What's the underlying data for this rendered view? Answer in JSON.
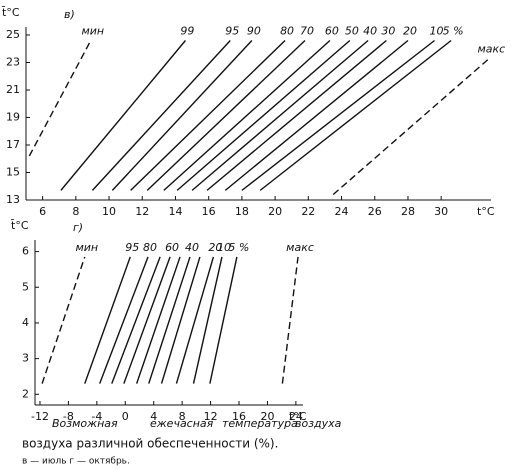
{
  "chart_data": [
    {
      "type": "line",
      "panel": "в)",
      "xlabel": "t°C",
      "ylabel": "t̄°C",
      "xlim": [
        5,
        33
      ],
      "ylim": [
        13,
        25
      ],
      "xticks": [
        6,
        8,
        10,
        12,
        14,
        16,
        18,
        20,
        22,
        24,
        26,
        28,
        30
      ],
      "yticks": [
        13,
        15,
        17,
        19,
        21,
        23,
        25
      ],
      "color": "#111111",
      "series": [
        {
          "name": "мин",
          "dashed": true,
          "x": [
            5.2,
            8.9
          ],
          "y": [
            16.2,
            24.6
          ]
        },
        {
          "name": "99",
          "x": [
            7.1,
            14.6
          ],
          "y": [
            13.7,
            24.6
          ]
        },
        {
          "name": "95",
          "x": [
            9.0,
            17.3
          ],
          "y": [
            13.7,
            24.6
          ]
        },
        {
          "name": "90",
          "x": [
            10.2,
            18.6
          ],
          "y": [
            13.7,
            24.6
          ]
        },
        {
          "name": "80",
          "x": [
            11.3,
            20.6
          ],
          "y": [
            13.7,
            24.6
          ]
        },
        {
          "name": "70",
          "x": [
            12.3,
            21.8
          ],
          "y": [
            13.7,
            24.6
          ]
        },
        {
          "name": "60",
          "x": [
            13.3,
            23.3
          ],
          "y": [
            13.7,
            24.6
          ]
        },
        {
          "name": "50",
          "x": [
            14.1,
            24.5
          ],
          "y": [
            13.7,
            24.6
          ]
        },
        {
          "name": "40",
          "x": [
            15.0,
            25.6
          ],
          "y": [
            13.7,
            24.6
          ]
        },
        {
          "name": "30",
          "x": [
            15.9,
            26.7
          ],
          "y": [
            13.7,
            24.6
          ]
        },
        {
          "name": "20",
          "x": [
            17.0,
            28.0
          ],
          "y": [
            13.7,
            24.6
          ]
        },
        {
          "name": "10",
          "x": [
            18.0,
            29.6
          ],
          "y": [
            13.7,
            24.6
          ]
        },
        {
          "name": "5 %",
          "x": [
            19.1,
            30.6
          ],
          "y": [
            13.7,
            24.6
          ]
        },
        {
          "name": "макс",
          "dashed": true,
          "x": [
            23.5,
            32.9
          ],
          "y": [
            13.4,
            23.3
          ]
        }
      ]
    },
    {
      "type": "line",
      "panel": "г)",
      "xlabel": "t°C",
      "ylabel": "t̄°C",
      "xlim": [
        -12.7,
        25
      ],
      "ylim": [
        1.7,
        6.1
      ],
      "xticks": [
        -12,
        -8,
        -4,
        0,
        4,
        8,
        12,
        16,
        20,
        24
      ],
      "yticks": [
        2,
        3,
        4,
        5,
        6
      ],
      "color": "#111111",
      "series": [
        {
          "name": "мин",
          "dashed": true,
          "x": [
            -11.7,
            -5.7
          ],
          "y": [
            2.3,
            5.85
          ]
        },
        {
          "name": "95",
          "x": [
            -5.7,
            0.7
          ],
          "y": [
            2.3,
            5.85
          ]
        },
        {
          "name": "80",
          "x": [
            -3.6,
            3.2
          ],
          "y": [
            2.3,
            5.85
          ]
        },
        {
          "name": null,
          "x": [
            -1.9,
            4.9
          ],
          "y": [
            2.3,
            5.85
          ]
        },
        {
          "name": "60",
          "x": [
            -0.2,
            6.3
          ],
          "y": [
            2.3,
            5.85
          ]
        },
        {
          "name": null,
          "x": [
            1.6,
            7.7
          ],
          "y": [
            2.3,
            5.85
          ]
        },
        {
          "name": "40",
          "x": [
            3.3,
            9.1
          ],
          "y": [
            2.3,
            5.85
          ]
        },
        {
          "name": null,
          "x": [
            5.1,
            10.5
          ],
          "y": [
            2.3,
            5.85
          ]
        },
        {
          "name": "20",
          "x": [
            7.2,
            12.4
          ],
          "y": [
            2.3,
            5.85
          ]
        },
        {
          "name": "10",
          "x": [
            9.6,
            13.6
          ],
          "y": [
            2.3,
            5.85
          ]
        },
        {
          "name": "5 %",
          "x": [
            11.9,
            15.7
          ],
          "y": [
            2.3,
            5.85
          ]
        },
        {
          "name": "макс",
          "dashed": true,
          "x": [
            22.1,
            24.3
          ],
          "y": [
            2.3,
            5.85
          ]
        }
      ]
    }
  ],
  "caption": {
    "words": [
      "Возможная",
      "ежечасная",
      "температура",
      "воздуха"
    ],
    "line2": "воздуха различной обеспеченности (%).",
    "line3": "в — июль   г — октябрь."
  }
}
